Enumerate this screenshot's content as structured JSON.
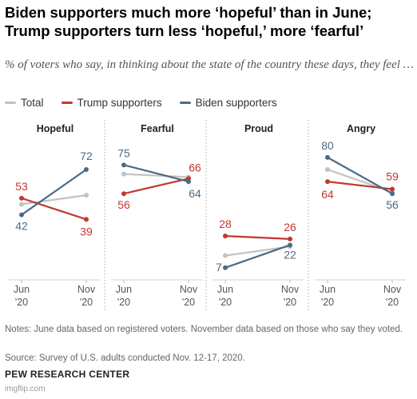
{
  "title": "Biden supporters much more ‘hopeful’ than in June; Trump supporters turn less ‘hopeful,’ more ‘fearful’",
  "subtitle": "% of voters who say, in thinking about the state of the country these days, they feel …",
  "legend": [
    {
      "label": "Total",
      "color": "#c2c2c2"
    },
    {
      "label": "Trump supporters",
      "color": "#c0392f"
    },
    {
      "label": "Biden supporters",
      "color": "#4a6b85"
    }
  ],
  "chart_data": {
    "type": "line",
    "x": [
      "Jun '20",
      "Nov '20"
    ],
    "ylim": [
      0,
      90
    ],
    "colors": {
      "Total": "#c2c2c2",
      "Trump supporters": "#c0392f",
      "Biden supporters": "#4a6b85"
    },
    "panels": [
      {
        "title": "Hopeful",
        "series": [
          {
            "name": "Total",
            "values": [
              49,
              55
            ]
          },
          {
            "name": "Trump supporters",
            "values": [
              53,
              39
            ]
          },
          {
            "name": "Biden supporters",
            "values": [
              42,
              72
            ]
          }
        ],
        "labels": [
          "53",
          "42",
          "72",
          "39"
        ]
      },
      {
        "title": "Fearful",
        "series": [
          {
            "name": "Total",
            "values": [
              69,
              67
            ]
          },
          {
            "name": "Trump supporters",
            "values": [
              56,
              66
            ]
          },
          {
            "name": "Biden supporters",
            "values": [
              75,
              64
            ]
          }
        ],
        "labels": [
          "75",
          "56",
          "66",
          "64"
        ]
      },
      {
        "title": "Proud",
        "series": [
          {
            "name": "Total",
            "values": [
              15,
              21
            ]
          },
          {
            "name": "Trump supporters",
            "values": [
              28,
              26
            ]
          },
          {
            "name": "Biden supporters",
            "values": [
              7,
              22
            ]
          }
        ],
        "labels": [
          "28",
          "7",
          "26",
          "22"
        ]
      },
      {
        "title": "Angry",
        "series": [
          {
            "name": "Total",
            "values": [
              72,
              57
            ]
          },
          {
            "name": "Trump supporters",
            "values": [
              64,
              59
            ]
          },
          {
            "name": "Biden supporters",
            "values": [
              80,
              56
            ]
          }
        ],
        "labels": [
          "80",
          "64",
          "59",
          "56"
        ]
      }
    ],
    "x_tick_labels": [
      [
        "Jun",
        "'20"
      ],
      [
        "Nov",
        "'20"
      ]
    ]
  },
  "notes": "Notes: June data based on registered voters. November data based on those who say they voted.",
  "source": "Source: Survey of U.S. adults conducted Nov. 12-17, 2020.",
  "brand": "PEW RESEARCH CENTER",
  "watermark": "imgflip.com"
}
